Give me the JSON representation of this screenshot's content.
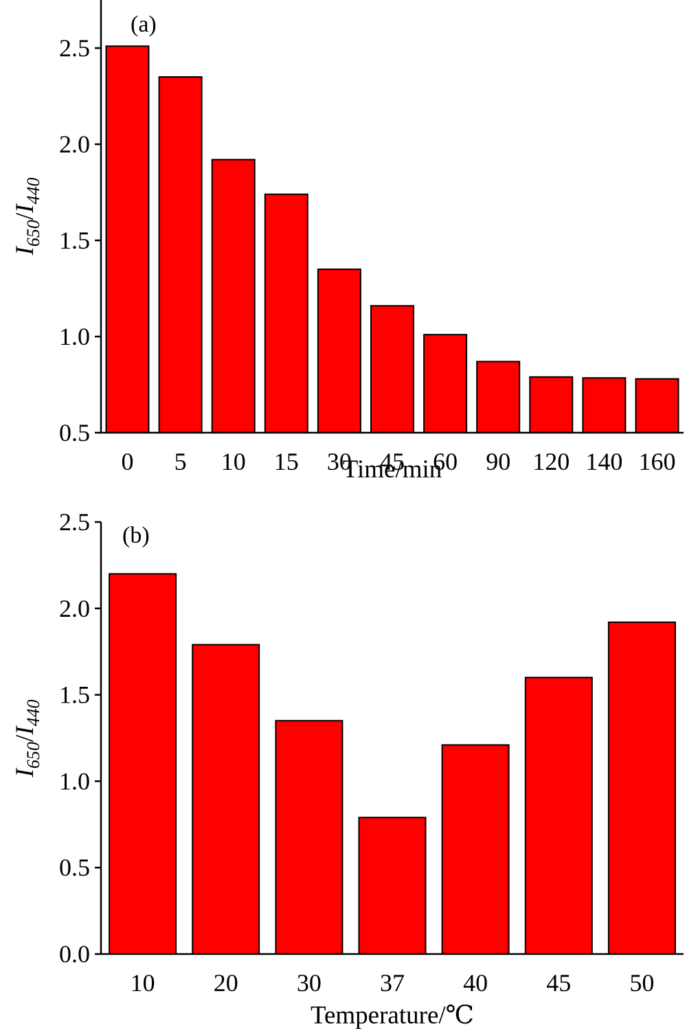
{
  "bar_color": "#ff0000",
  "chart_data": [
    {
      "type": "bar",
      "panel_label": "(a)",
      "xlabel": "Time/min",
      "ylabel": {
        "base1": "I",
        "sub1": "650",
        "sep": "/",
        "base2": "I",
        "sub2": "440"
      },
      "categories": [
        "0",
        "5",
        "10",
        "15",
        "30",
        "45",
        "60",
        "90",
        "120",
        "140",
        "160"
      ],
      "values": [
        2.51,
        2.35,
        1.92,
        1.74,
        1.35,
        1.16,
        1.01,
        0.87,
        0.79,
        0.785,
        0.78
      ],
      "ylim": [
        0.5,
        2.75
      ],
      "yticks": [
        "0.5",
        "1.0",
        "1.5",
        "2.0",
        "2.5"
      ],
      "grid": false
    },
    {
      "type": "bar",
      "panel_label": "(b)",
      "xlabel": "Temperature/℃",
      "ylabel": {
        "base1": "I",
        "sub1": "650",
        "sep": "/",
        "base2": "I",
        "sub2": "440"
      },
      "categories": [
        "10",
        "20",
        "30",
        "37",
        "40",
        "45",
        "50"
      ],
      "values": [
        2.2,
        1.79,
        1.35,
        0.79,
        1.21,
        1.6,
        1.92
      ],
      "ylim": [
        0.0,
        2.5
      ],
      "yticks": [
        "0.0",
        "0.5",
        "1.0",
        "1.5",
        "2.0",
        "2.5"
      ],
      "grid": false
    }
  ]
}
